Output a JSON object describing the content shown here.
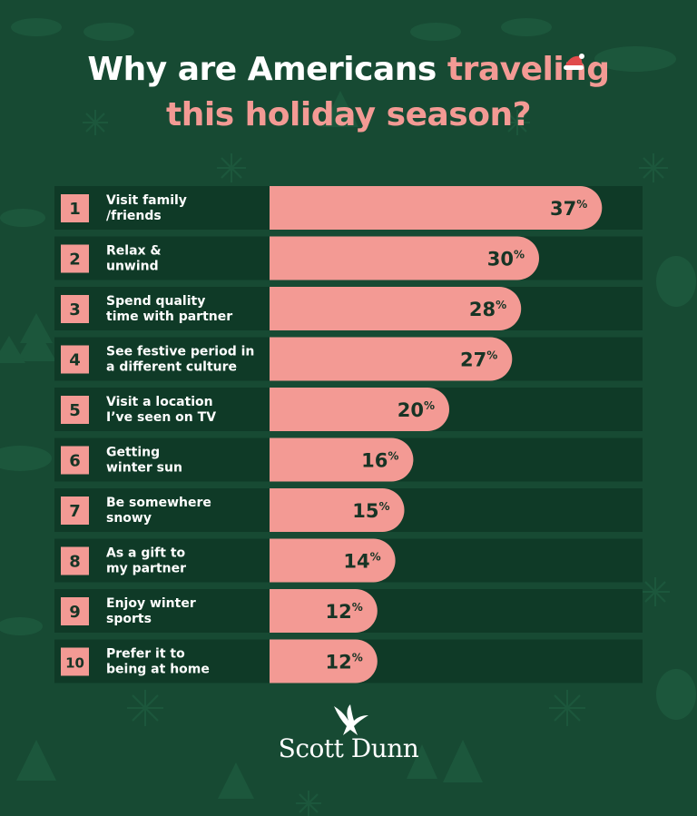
{
  "title": {
    "part1": "Why are Americans",
    "part2": "traveling",
    "part3": "this holiday season?"
  },
  "brand": {
    "name": "Scott Dunn"
  },
  "colors": {
    "background": "#174a33",
    "row_background": "#0f3a27",
    "bar": "#f39a94",
    "text_dark": "#173425",
    "text_white": "#ffffff"
  },
  "chart_data": {
    "type": "bar",
    "orientation": "horizontal",
    "title": "Why are Americans traveling this holiday season?",
    "unit": "%",
    "ylim": [
      0,
      40
    ],
    "grid": false,
    "legend": "none",
    "categories": [
      {
        "rank": "1",
        "line1": "Visit family",
        "line2": "/friends"
      },
      {
        "rank": "2",
        "line1": "Relax &",
        "line2": "unwind"
      },
      {
        "rank": "3",
        "line1": "Spend quality",
        "line2": "time with partner"
      },
      {
        "rank": "4",
        "line1": "See festive period in",
        "line2": "a different culture"
      },
      {
        "rank": "5",
        "line1": "Visit a location",
        "line2": "I’ve seen on TV"
      },
      {
        "rank": "6",
        "line1": "Getting",
        "line2": "winter sun"
      },
      {
        "rank": "7",
        "line1": "Be somewhere",
        "line2": "snowy"
      },
      {
        "rank": "8",
        "line1": "As a gift to",
        "line2": "my partner"
      },
      {
        "rank": "9",
        "line1": "Enjoy winter",
        "line2": "sports"
      },
      {
        "rank": "10",
        "line1": "Prefer it to",
        "line2": "being at home"
      }
    ],
    "values": [
      37,
      30,
      28,
      27,
      20,
      16,
      15,
      14,
      12,
      12
    ]
  }
}
